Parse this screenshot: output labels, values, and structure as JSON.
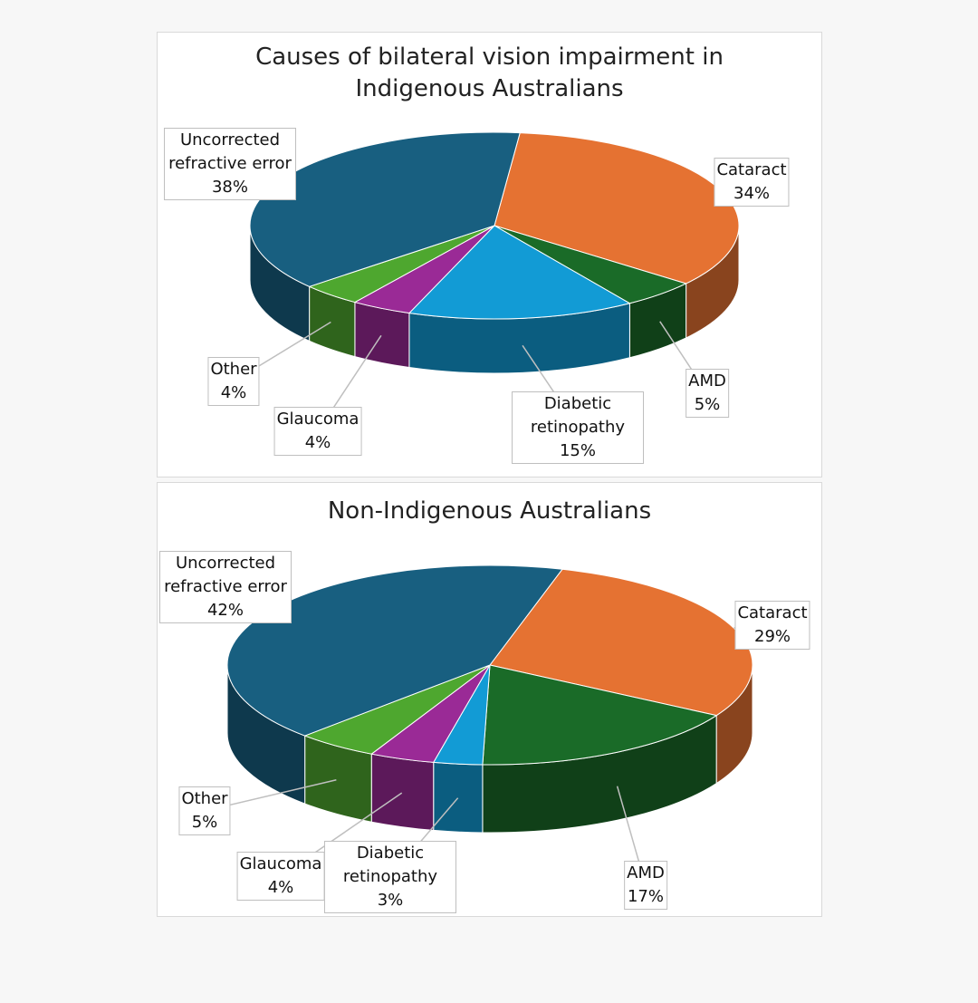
{
  "chart_data": [
    {
      "type": "pie",
      "title": "Causes of bilateral vision impairment in Indigenous Australians",
      "categories": [
        "Cataract",
        "AMD",
        "Diabetic retinopathy",
        "Glaucoma",
        "Other",
        "Uncorrected refractive error"
      ],
      "values": [
        34,
        5,
        15,
        4,
        4,
        38
      ],
      "value_labels": [
        "34%",
        "5%",
        "15%",
        "4%",
        "4%",
        "38%"
      ],
      "colors": [
        "#e57232",
        "#1a6b28",
        "#129bd5",
        "#9a2a96",
        "#4ea72f",
        "#185f80"
      ]
    },
    {
      "type": "pie",
      "title": "Non-Indigenous Australians",
      "categories": [
        "Cataract",
        "AMD",
        "Diabetic retinopathy",
        "Glaucoma",
        "Other",
        "Uncorrected refractive error"
      ],
      "values": [
        29,
        17,
        3,
        4,
        5,
        42
      ],
      "value_labels": [
        "29%",
        "17%",
        "3%",
        "4%",
        "5%",
        "42%"
      ],
      "colors": [
        "#e57232",
        "#1a6b28",
        "#129bd5",
        "#9a2a96",
        "#4ea72f",
        "#185f80"
      ]
    }
  ]
}
